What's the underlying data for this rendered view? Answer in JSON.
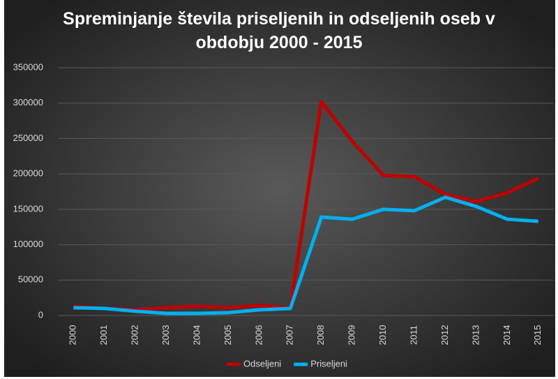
{
  "chart_data": {
    "type": "line",
    "title": "Spreminjanje števila priseljenih in odseljenih oseb v obdobju 2000 - 2015",
    "categories": [
      "2000",
      "2001",
      "2002",
      "2003",
      "2004",
      "2005",
      "2006",
      "2007",
      "2008",
      "2009",
      "2010",
      "2011",
      "2012",
      "2013",
      "2014",
      "2015"
    ],
    "series": [
      {
        "name": "Odseljeni",
        "color": "#c00000",
        "values": [
          13000,
          10000,
          8000,
          11000,
          13000,
          11000,
          14000,
          11000,
          302000,
          246000,
          198000,
          196000,
          171000,
          161000,
          173000,
          194000
        ]
      },
      {
        "name": "Priseljeni",
        "color": "#00b0f0",
        "values": [
          11000,
          10000,
          6000,
          3000,
          3000,
          4000,
          8000,
          10000,
          139000,
          136000,
          150000,
          148000,
          167000,
          154000,
          136000,
          133000
        ]
      }
    ],
    "ylim": [
      0,
      350000
    ],
    "yticks": [
      0,
      50000,
      100000,
      150000,
      200000,
      250000,
      300000,
      350000
    ],
    "grid": true,
    "legend": "bottom"
  }
}
